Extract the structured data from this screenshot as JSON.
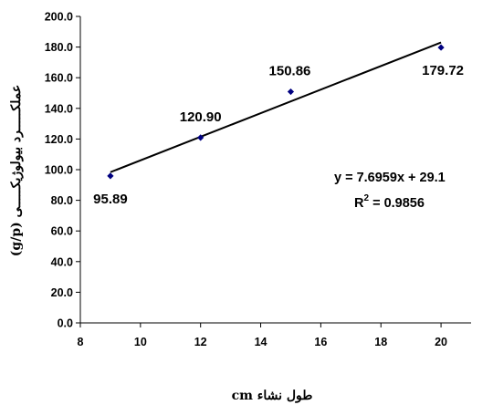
{
  "chart_data": {
    "type": "scatter",
    "x": [
      9,
      12,
      15,
      20
    ],
    "y": [
      95.89,
      120.9,
      150.86,
      179.72
    ],
    "data_labels": [
      "95.89",
      "120.90",
      "150.86",
      "179.72"
    ],
    "xlim": [
      8,
      21
    ],
    "ylim": [
      0,
      200
    ],
    "x_ticks": [
      8,
      10,
      12,
      14,
      16,
      18,
      20
    ],
    "x_tick_labels": [
      "8",
      "10",
      "12",
      "14",
      "16",
      "18",
      "20"
    ],
    "y_ticks": [
      0,
      20,
      40,
      60,
      80,
      100,
      120,
      140,
      160,
      180,
      200
    ],
    "y_tick_labels": [
      "0.0",
      "20.0",
      "40.0",
      "60.0",
      "80.0",
      "100.0",
      "120.0",
      "140.0",
      "160.0",
      "180.0",
      "200.0"
    ],
    "xlabel": "طول نشاء cm",
    "ylabel": "عملکـــــرد بيولوژيکـــــى (g/p)",
    "trendline": {
      "type": "linear",
      "slope": 7.6959,
      "intercept": 29.1,
      "x_range": [
        9,
        20
      ],
      "equation": "y = 7.6959x + 29.1",
      "r2_label": "R",
      "r2_sup": "2",
      "r2_value": " = 0.9856"
    },
    "grid": false,
    "legend": "none",
    "marker_color": "#000080",
    "line_color": "#000000"
  }
}
